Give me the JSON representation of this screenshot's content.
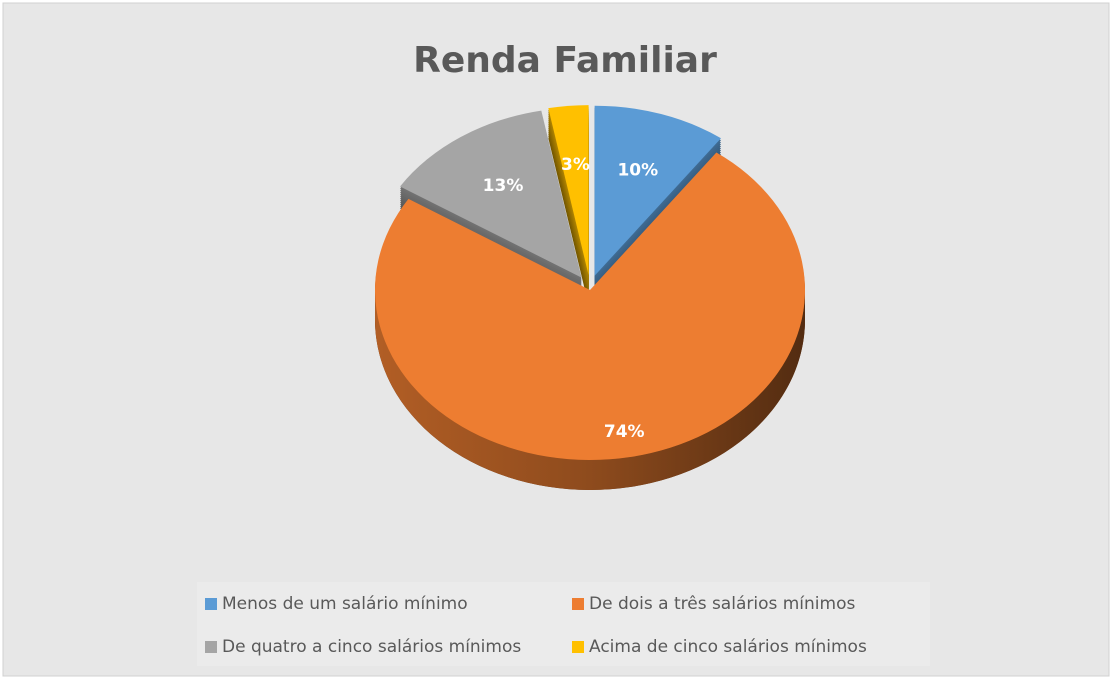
{
  "chart_data": {
    "type": "pie",
    "title": "Renda Familiar",
    "categories": [
      "Menos de um salário mínimo",
      "De dois a três salários mínimos",
      "De quatro a cinco salários mínimos",
      "Acima de cinco salários mínimos"
    ],
    "values": [
      10,
      74,
      13,
      3
    ],
    "value_labels": [
      "10%",
      "74%",
      "13%",
      "3%"
    ],
    "colors": [
      "#5b9bd5",
      "#ed7d31",
      "#a5a5a5",
      "#ffc000"
    ],
    "legend": "bottom"
  }
}
